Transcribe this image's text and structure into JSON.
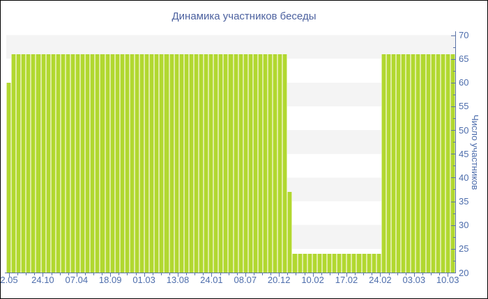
{
  "title": "Динамика участников беседы",
  "y_axis": {
    "title": "Число участников",
    "min": 20,
    "max": 70,
    "step": 5,
    "tick_labels": [
      "70",
      "65",
      "60",
      "55",
      "50",
      "45",
      "40",
      "35",
      "30",
      "25",
      "20"
    ]
  },
  "x_axis": {
    "tick_labels": [
      "2.05",
      "24.10",
      "07.04",
      "18.09",
      "01.03",
      "13.08",
      "24.01",
      "08.07",
      "20.12",
      "10.02",
      "17.02",
      "24.02",
      "03.03",
      "10.03"
    ]
  },
  "chart_data": {
    "type": "bar",
    "title": "Динамика участников беседы",
    "xlabel": "",
    "ylabel": "Число участников",
    "ylim": [
      20,
      70
    ],
    "grid": "horizontal-stripes",
    "legend": "none",
    "x_tick_labels": [
      "2.05",
      "24.10",
      "07.04",
      "18.09",
      "01.03",
      "13.08",
      "24.01",
      "08.07",
      "20.12",
      "10.02",
      "17.02",
      "24.02",
      "03.03",
      "10.03"
    ],
    "values": [
      60,
      66,
      66,
      66,
      66,
      66,
      66,
      66,
      66,
      66,
      66,
      66,
      66,
      66,
      66,
      66,
      66,
      66,
      66,
      66,
      66,
      66,
      66,
      66,
      66,
      66,
      66,
      66,
      66,
      66,
      66,
      66,
      66,
      66,
      66,
      66,
      66,
      66,
      66,
      66,
      66,
      66,
      66,
      66,
      66,
      66,
      66,
      66,
      66,
      66,
      66,
      66,
      66,
      66,
      66,
      66,
      66,
      37,
      24,
      24,
      24,
      24,
      24,
      24,
      24,
      24,
      24,
      24,
      24,
      24,
      24,
      24,
      24,
      24,
      24,
      24,
      66,
      66,
      66,
      66,
      66,
      66,
      66,
      66,
      66,
      66,
      66,
      66,
      66,
      66,
      66
    ]
  },
  "colors": {
    "bar": "#b1d830",
    "bar_gap": "#deeca0",
    "stripe": "#f4f4f4",
    "axis_line": "#5b74a8",
    "tick_label": "#4d6dac",
    "title": "#4c619f",
    "background": "#ffffff"
  }
}
